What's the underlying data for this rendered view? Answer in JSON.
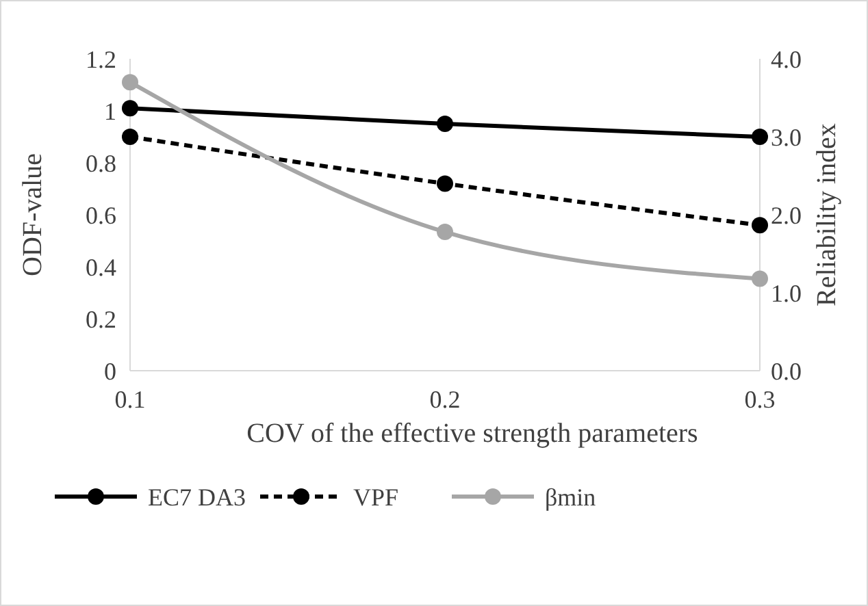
{
  "chart_data": {
    "type": "line",
    "xlabel": "COV of the effective strength parameters",
    "ylabel": "ODF-value",
    "y2label": "Reliability index",
    "x": [
      0.1,
      0.2,
      0.3
    ],
    "xlim": [
      0.1,
      0.3
    ],
    "xticks": [
      0.1,
      0.2,
      0.3
    ],
    "ylim": [
      0,
      1.2
    ],
    "yticks": [
      0,
      0.2,
      0.4,
      0.6,
      0.8,
      1,
      1.2
    ],
    "y2lim": [
      0,
      4
    ],
    "y2ticks": [
      {
        "value": 0,
        "label": "0.0"
      },
      {
        "value": 1,
        "label": "1.0"
      },
      {
        "value": 2,
        "label": "2.0"
      },
      {
        "value": 3,
        "label": "3.0"
      },
      {
        "value": 4,
        "label": "4.0"
      }
    ],
    "marker": "circle",
    "grid": false,
    "legend": "bottom",
    "series": [
      {
        "name": "EC7 DA3",
        "color": "#000000",
        "values": [
          1.01,
          0.95,
          0.9
        ],
        "line_style": "solid"
      },
      {
        "name": "VPF",
        "color": "#000000",
        "values": [
          0.9,
          0.72,
          0.56
        ],
        "line_style": "dashed"
      },
      {
        "name": "βmin",
        "color": "#a6a6a6",
        "values": [
          3.7,
          1.78,
          1.18
        ],
        "axis": "y2",
        "line_style": "solid"
      }
    ]
  }
}
